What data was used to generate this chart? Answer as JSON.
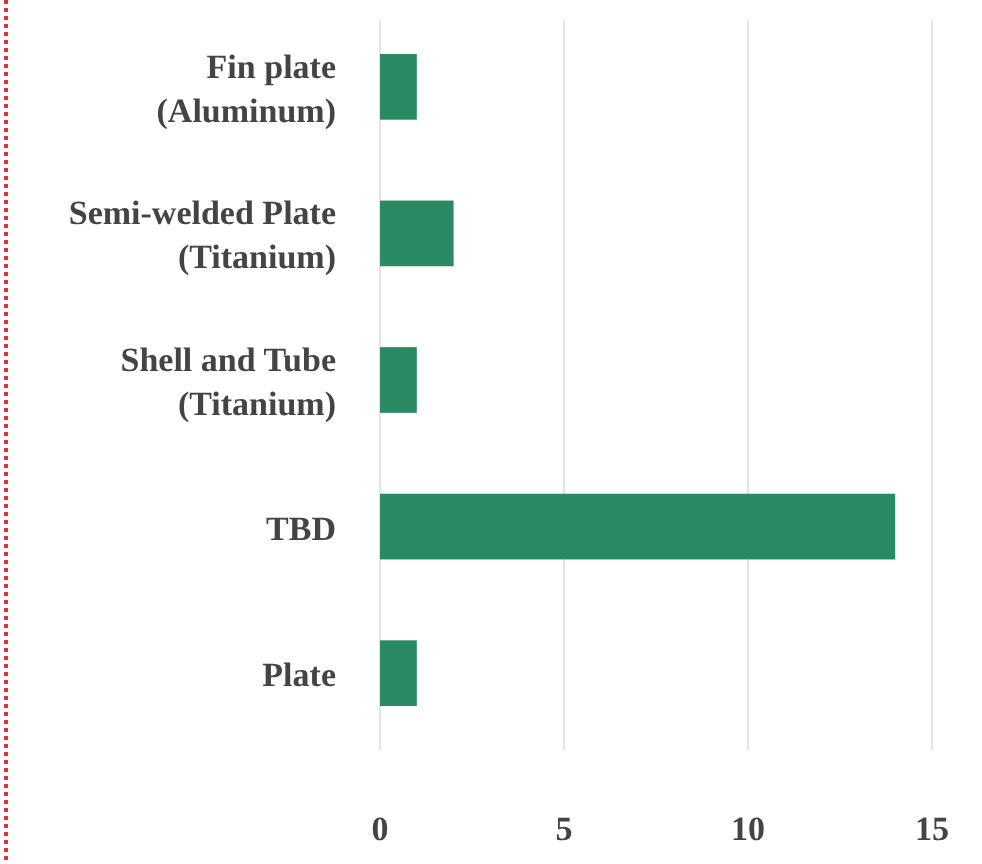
{
  "chart_data": {
    "type": "bar",
    "orientation": "horizontal",
    "categories": [
      "Fin plate (Aluminum)",
      "Semi-welded Plate (Titanium)",
      "Shell and Tube (Titanium)",
      "TBD",
      "Plate"
    ],
    "values": [
      1,
      2,
      1,
      14,
      1
    ],
    "color": "#2a8a64",
    "xlim": [
      0,
      15
    ],
    "xticks": [
      0,
      5,
      10,
      15
    ],
    "grid": "x"
  }
}
